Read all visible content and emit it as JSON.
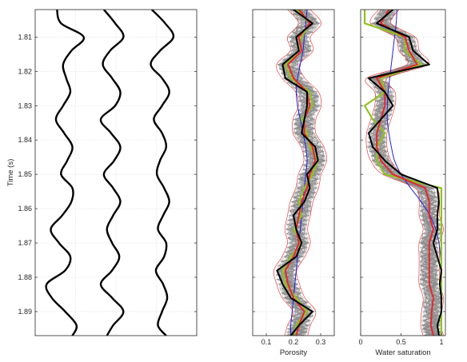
{
  "chart_data": [
    {
      "type": "line",
      "panel": "seismic-traces",
      "title": "",
      "xlabel": "",
      "ylabel": "Time (s)",
      "ylim": [
        1.802,
        1.897
      ],
      "yticks": [
        "1.81",
        "1.82",
        "1.83",
        "1.84",
        "1.85",
        "1.86",
        "1.87",
        "1.88",
        "1.89"
      ],
      "ytick_values": [
        1.81,
        1.82,
        1.83,
        1.84,
        1.85,
        1.86,
        1.87,
        1.88,
        1.89
      ],
      "grid": true,
      "traces": [
        {
          "offset": 0.0,
          "color": "#000000",
          "time": [
            1.802,
            1.806,
            1.81,
            1.814,
            1.818,
            1.822,
            1.826,
            1.83,
            1.834,
            1.838,
            1.842,
            1.846,
            1.85,
            1.854,
            1.858,
            1.862,
            1.866,
            1.87,
            1.874,
            1.878,
            1.882,
            1.886,
            1.89,
            1.894,
            1.897
          ],
          "amplitude": [
            -0.25,
            -0.05,
            1.05,
            0.45,
            0.05,
            0.2,
            0.4,
            0.05,
            -0.3,
            0.1,
            0.5,
            0.25,
            -0.05,
            0.5,
            0.45,
            0.0,
            -0.55,
            -0.15,
            0.4,
            0.15,
            -0.75,
            -0.5,
            0.15,
            0.7,
            0.5
          ]
        },
        {
          "offset": 1.0,
          "color": "#000000",
          "time": [
            1.802,
            1.806,
            1.81,
            1.814,
            1.818,
            1.822,
            1.826,
            1.83,
            1.834,
            1.838,
            1.842,
            1.846,
            1.85,
            1.854,
            1.858,
            1.862,
            1.866,
            1.87,
            1.874,
            1.878,
            1.882,
            1.886,
            1.89,
            1.894,
            1.897
          ],
          "amplitude": [
            -0.35,
            0.2,
            0.6,
            -0.05,
            -0.4,
            0.05,
            0.45,
            0.2,
            -0.5,
            0.0,
            0.45,
            0.15,
            -0.35,
            0.1,
            0.45,
            0.1,
            -0.2,
            0.05,
            0.4,
            0.05,
            -0.5,
            0.05,
            0.6,
            0.1,
            -0.2
          ]
        },
        {
          "offset": 2.0,
          "color": "#000000",
          "time": [
            1.802,
            1.806,
            1.81,
            1.814,
            1.818,
            1.822,
            1.826,
            1.83,
            1.834,
            1.838,
            1.842,
            1.846,
            1.85,
            1.854,
            1.858,
            1.862,
            1.866,
            1.87,
            1.874,
            1.878,
            1.882,
            1.886,
            1.89,
            1.894,
            1.897
          ],
          "amplitude": [
            -0.4,
            0.25,
            0.65,
            0.0,
            -0.45,
            0.1,
            0.45,
            0.1,
            -0.3,
            0.1,
            0.3,
            0.0,
            -0.15,
            0.2,
            0.45,
            0.15,
            -0.1,
            0.3,
            0.2,
            -0.2,
            0.15,
            0.35,
            0.1,
            -0.1,
            0.3
          ]
        }
      ]
    },
    {
      "type": "line",
      "panel": "porosity",
      "title": "",
      "xlabel": "Porosity",
      "ylabel": "",
      "xlim": [
        0.05,
        0.35
      ],
      "ylim": [
        1.802,
        1.897
      ],
      "xticks": [
        "0.1",
        "0.2",
        "0.3"
      ],
      "xtick_values": [
        0.1,
        0.2,
        0.3
      ],
      "grid": true,
      "time": [
        1.802,
        1.806,
        1.81,
        1.814,
        1.818,
        1.822,
        1.826,
        1.83,
        1.834,
        1.838,
        1.842,
        1.846,
        1.85,
        1.854,
        1.858,
        1.862,
        1.866,
        1.87,
        1.874,
        1.878,
        1.882,
        1.886,
        1.89,
        1.894,
        1.897
      ],
      "realizations": {
        "count": 60,
        "color": "#8a8a8a",
        "spread": 0.04
      },
      "series": [
        {
          "color": "#e8262b",
          "values": [
            0.22,
            0.26,
            0.22,
            0.23,
            0.18,
            0.2,
            0.25,
            0.26,
            0.24,
            0.24,
            0.27,
            0.28,
            0.26,
            0.25,
            0.23,
            0.22,
            0.21,
            0.22,
            0.2,
            0.17,
            0.18,
            0.2,
            0.24,
            0.22,
            0.21
          ]
        },
        {
          "color": "#000000",
          "values": [
            0.2,
            0.27,
            0.21,
            0.22,
            0.16,
            0.17,
            0.25,
            0.25,
            0.24,
            0.23,
            0.28,
            0.29,
            0.25,
            0.26,
            0.24,
            0.2,
            0.21,
            0.23,
            0.21,
            0.14,
            0.16,
            0.19,
            0.27,
            0.22,
            0.19
          ]
        },
        {
          "color": "#8fc31f",
          "values": [
            0.21,
            0.26,
            0.23,
            0.22,
            0.17,
            0.19,
            0.26,
            0.27,
            0.23,
            0.25,
            0.26,
            0.29,
            0.27,
            0.24,
            0.22,
            0.23,
            0.2,
            0.23,
            0.19,
            0.16,
            0.17,
            0.21,
            0.25,
            0.21,
            0.2
          ]
        },
        {
          "color": "#2222dd",
          "values": [
            0.25,
            0.245,
            0.24,
            0.235,
            0.225,
            0.215,
            0.21,
            0.215,
            0.225,
            0.235,
            0.245,
            0.25,
            0.245,
            0.24,
            0.235,
            0.23,
            0.225,
            0.22,
            0.215,
            0.21,
            0.205,
            0.2,
            0.195,
            0.19,
            0.19
          ]
        }
      ]
    },
    {
      "type": "line",
      "panel": "water-saturation",
      "title": "",
      "xlabel": "Water saturation",
      "ylabel": "",
      "xlim": [
        0,
        1.05
      ],
      "ylim": [
        1.802,
        1.897
      ],
      "xticks": [
        "0",
        "0.5",
        "1"
      ],
      "xtick_values": [
        0,
        0.5,
        1.0
      ],
      "grid": true,
      "time": [
        1.802,
        1.806,
        1.81,
        1.814,
        1.818,
        1.822,
        1.826,
        1.83,
        1.834,
        1.838,
        1.842,
        1.846,
        1.85,
        1.854,
        1.858,
        1.862,
        1.866,
        1.87,
        1.874,
        1.878,
        1.882,
        1.886,
        1.89,
        1.894,
        1.897
      ],
      "realizations": {
        "count": 60,
        "color": "#8a8a8a",
        "spread": 0.12
      },
      "series": [
        {
          "color": "#e8262b",
          "values": [
            0.35,
            0.25,
            0.55,
            0.6,
            0.7,
            0.2,
            0.3,
            0.3,
            0.25,
            0.2,
            0.2,
            0.25,
            0.4,
            0.8,
            0.85,
            0.85,
            0.9,
            0.85,
            0.85,
            0.85,
            0.85,
            0.9,
            0.88,
            0.87,
            0.9
          ]
        },
        {
          "color": "#000000",
          "values": [
            0.4,
            0.2,
            0.6,
            0.65,
            0.85,
            0.1,
            0.3,
            0.4,
            0.25,
            0.1,
            0.15,
            0.3,
            0.5,
            0.95,
            0.97,
            0.95,
            0.95,
            0.9,
            0.95,
            1.0,
            0.98,
            1.0,
            1.0,
            0.95,
            0.97
          ]
        },
        {
          "color": "#8fc31f",
          "values": [
            0.05,
            0.05,
            0.55,
            0.55,
            0.75,
            0.25,
            0.3,
            0.05,
            0.15,
            0.3,
            0.2,
            0.2,
            0.3,
            1.0,
            1.0,
            1.0,
            1.0,
            1.0,
            1.0,
            1.0,
            1.0,
            1.0,
            1.0,
            1.0,
            1.0
          ]
        },
        {
          "color": "#2222dd",
          "values": [
            0.45,
            0.44,
            0.42,
            0.4,
            0.38,
            0.36,
            0.34,
            0.33,
            0.33,
            0.35,
            0.38,
            0.42,
            0.5,
            0.62,
            0.75,
            0.86,
            0.93,
            0.97,
            0.99,
            1.0,
            1.0,
            1.0,
            1.0,
            1.0,
            1.0
          ]
        }
      ]
    }
  ]
}
